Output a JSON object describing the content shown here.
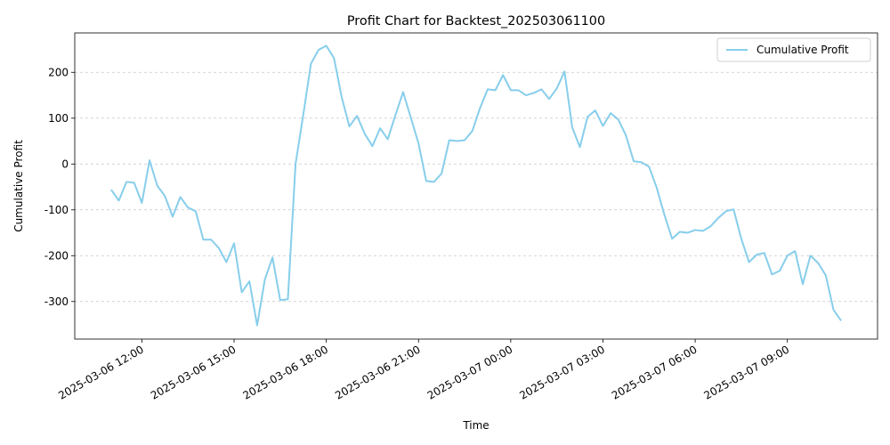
{
  "chart_data": {
    "type": "line",
    "title": "Profit Chart for Backtest_202503061100",
    "xlabel": "Time",
    "ylabel": "Cumulative Profit",
    "x": [
      "2025-03-06 11:00",
      "2025-03-06 11:15",
      "2025-03-06 11:30",
      "2025-03-06 11:45",
      "2025-03-06 12:00",
      "2025-03-06 12:15",
      "2025-03-06 12:30",
      "2025-03-06 12:45",
      "2025-03-06 13:00",
      "2025-03-06 13:15",
      "2025-03-06 13:30",
      "2025-03-06 13:45",
      "2025-03-06 14:00",
      "2025-03-06 14:15",
      "2025-03-06 14:30",
      "2025-03-06 14:45",
      "2025-03-06 15:00",
      "2025-03-06 15:15",
      "2025-03-06 15:30",
      "2025-03-06 15:45",
      "2025-03-06 16:00",
      "2025-03-06 16:15",
      "2025-03-06 16:30",
      "2025-03-06 16:45",
      "2025-03-06 17:00",
      "2025-03-06 17:15",
      "2025-03-06 17:30",
      "2025-03-06 17:45",
      "2025-03-06 18:00",
      "2025-03-06 18:15",
      "2025-03-06 18:30",
      "2025-03-06 18:45",
      "2025-03-06 19:00",
      "2025-03-06 19:15",
      "2025-03-06 19:30",
      "2025-03-06 19:45",
      "2025-03-06 20:00",
      "2025-03-06 20:15",
      "2025-03-06 20:30",
      "2025-03-06 20:45",
      "2025-03-06 21:00",
      "2025-03-06 21:15",
      "2025-03-06 21:30",
      "2025-03-06 21:45",
      "2025-03-06 22:00",
      "2025-03-06 22:15",
      "2025-03-06 22:30",
      "2025-03-06 22:45",
      "2025-03-06 23:00",
      "2025-03-06 23:15",
      "2025-03-06 23:30",
      "2025-03-06 23:45",
      "2025-03-07 00:00",
      "2025-03-07 00:15",
      "2025-03-07 00:30",
      "2025-03-07 00:45",
      "2025-03-07 01:00",
      "2025-03-07 01:15",
      "2025-03-07 01:30",
      "2025-03-07 01:45",
      "2025-03-07 02:00",
      "2025-03-07 02:15",
      "2025-03-07 02:30",
      "2025-03-07 02:45",
      "2025-03-07 03:00",
      "2025-03-07 03:15",
      "2025-03-07 03:30",
      "2025-03-07 03:45",
      "2025-03-07 04:00",
      "2025-03-07 04:15",
      "2025-03-07 04:30",
      "2025-03-07 04:45",
      "2025-03-07 05:00",
      "2025-03-07 05:15",
      "2025-03-07 05:30",
      "2025-03-07 05:45",
      "2025-03-07 06:00",
      "2025-03-07 06:15",
      "2025-03-07 06:30",
      "2025-03-07 06:45",
      "2025-03-07 07:00",
      "2025-03-07 07:15",
      "2025-03-07 07:30",
      "2025-03-07 07:45",
      "2025-03-07 08:00",
      "2025-03-07 08:15",
      "2025-03-07 08:30",
      "2025-03-07 08:45",
      "2025-03-07 09:00",
      "2025-03-07 09:15",
      "2025-03-07 09:30",
      "2025-03-07 09:45",
      "2025-03-07 10:00",
      "2025-03-07 10:15",
      "2025-03-07 10:30",
      "2025-03-07 10:45"
    ],
    "series": [
      {
        "name": "Cumulative Profit",
        "color": "#87ceeb",
        "values": [
          -56,
          -80,
          -39,
          -41,
          -85,
          8,
          -47,
          -70,
          -115,
          -72,
          -95,
          -103,
          -165,
          -165,
          -183,
          -214,
          -173,
          -280,
          -256,
          -352,
          -252,
          -204,
          -297,
          -295,
          0,
          107,
          219,
          249,
          258,
          231,
          146,
          82,
          105,
          66,
          39,
          78,
          54,
          107,
          157,
          101,
          45,
          -37,
          -39,
          -21,
          52,
          50,
          52,
          72,
          122,
          163,
          161,
          194,
          161,
          161,
          150,
          155,
          163,
          142,
          165,
          202,
          80,
          37,
          103,
          117,
          83,
          111,
          97,
          62,
          6,
          4,
          -6,
          -52,
          -111,
          -163,
          -148,
          -150,
          -144,
          -146,
          -136,
          -118,
          -103,
          -99,
          -163,
          -214,
          -198,
          -194,
          -241,
          -233,
          -200,
          -190,
          -262,
          -200,
          -216,
          -243,
          -318,
          -342
        ]
      }
    ],
    "xlim": [
      "2025-03-06 09:49",
      "2025-03-07 11:56"
    ],
    "xticks": [
      "2025-03-06 12:00",
      "2025-03-06 15:00",
      "2025-03-06 18:00",
      "2025-03-06 21:00",
      "2025-03-07 00:00",
      "2025-03-07 03:00",
      "2025-03-07 06:00",
      "2025-03-07 09:00"
    ],
    "ylim": [
      -382,
      286
    ],
    "yticks": [
      -300,
      -200,
      -100,
      0,
      100,
      200
    ],
    "grid": true,
    "legend": "upper right"
  }
}
